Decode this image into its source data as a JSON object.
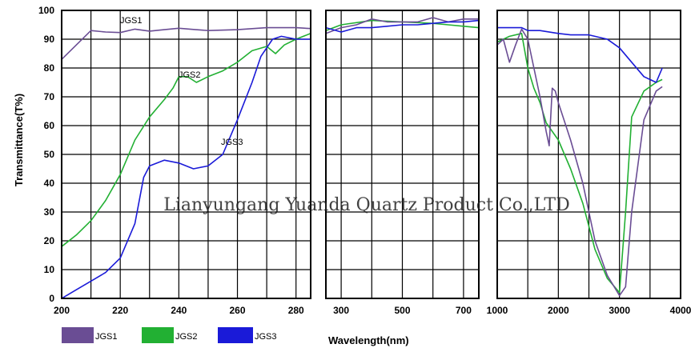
{
  "chart_data": {
    "type": "line",
    "ylabel": "Transmittance(T%)",
    "xlabel": "Wavelength(nm)",
    "ylim": [
      0,
      100
    ],
    "yticks": [
      "0",
      "10",
      "20",
      "30",
      "40",
      "50",
      "60",
      "70",
      "80",
      "90",
      "100"
    ],
    "grid": true,
    "panels": [
      {
        "xlim": [
          200,
          285
        ],
        "xticks": [
          {
            "v": 200,
            "label": "200"
          },
          {
            "v": 220,
            "label": "220"
          },
          {
            "v": 240,
            "label": "240"
          },
          {
            "v": 260,
            "label": "260"
          },
          {
            "v": 280,
            "label": "280"
          }
        ],
        "gridx": [
          200,
          210,
          220,
          230,
          240,
          250,
          260,
          270,
          280
        ],
        "series": {
          "JGS1": [
            [
              200,
              83
            ],
            [
              205,
              88
            ],
            [
              210,
              93
            ],
            [
              215,
              92.5
            ],
            [
              220,
              92.3
            ],
            [
              225,
              93.5
            ],
            [
              230,
              92.8
            ],
            [
              235,
              93.3
            ],
            [
              240,
              93.8
            ],
            [
              245,
              93.4
            ],
            [
              250,
              93
            ],
            [
              260,
              93.3
            ],
            [
              270,
              94
            ],
            [
              280,
              94
            ],
            [
              285,
              93.7
            ]
          ],
          "JGS2": [
            [
              200,
              18
            ],
            [
              205,
              22
            ],
            [
              210,
              27
            ],
            [
              215,
              34
            ],
            [
              220,
              43
            ],
            [
              225,
              55
            ],
            [
              230,
              63
            ],
            [
              235,
              69
            ],
            [
              238,
              73
            ],
            [
              240,
              77
            ],
            [
              243,
              77
            ],
            [
              246,
              75
            ],
            [
              250,
              77
            ],
            [
              255,
              79
            ],
            [
              260,
              82
            ],
            [
              265,
              86
            ],
            [
              270,
              87.5
            ],
            [
              273,
              85
            ],
            [
              276,
              88
            ],
            [
              280,
              90
            ],
            [
              285,
              92
            ]
          ],
          "JGS3": [
            [
              200,
              0
            ],
            [
              205,
              3
            ],
            [
              210,
              6
            ],
            [
              215,
              9
            ],
            [
              220,
              14
            ],
            [
              225,
              26
            ],
            [
              228,
              42
            ],
            [
              230,
              46
            ],
            [
              235,
              48
            ],
            [
              240,
              47
            ],
            [
              245,
              45
            ],
            [
              250,
              46
            ],
            [
              255,
              50
            ],
            [
              260,
              62
            ],
            [
              265,
              75
            ],
            [
              268,
              84
            ],
            [
              272,
              90
            ],
            [
              275,
              91
            ],
            [
              280,
              90
            ],
            [
              285,
              90
            ]
          ]
        }
      },
      {
        "xlim": [
          250,
          750
        ],
        "xticks": [
          {
            "v": 300,
            "label": "300"
          },
          {
            "v": 500,
            "label": "500"
          },
          {
            "v": 700,
            "label": "700"
          }
        ],
        "gridx": [
          300,
          400,
          500,
          600,
          700
        ],
        "series": {
          "JGS1": [
            [
              250,
              92
            ],
            [
              300,
              94
            ],
            [
              350,
              95
            ],
            [
              400,
              97
            ],
            [
              450,
              96
            ],
            [
              500,
              96
            ],
            [
              550,
              96
            ],
            [
              600,
              97.5
            ],
            [
              650,
              96
            ],
            [
              700,
              97
            ],
            [
              750,
              97
            ]
          ],
          "JGS2": [
            [
              250,
              93
            ],
            [
              300,
              95
            ],
            [
              400,
              96.5
            ],
            [
              500,
              96
            ],
            [
              600,
              95.5
            ],
            [
              650,
              95
            ],
            [
              700,
              94.5
            ],
            [
              750,
              94
            ]
          ],
          "JGS3": [
            [
              250,
              94
            ],
            [
              300,
              92.5
            ],
            [
              350,
              94
            ],
            [
              400,
              94
            ],
            [
              450,
              94.5
            ],
            [
              500,
              95
            ],
            [
              550,
              95
            ],
            [
              600,
              95.5
            ],
            [
              650,
              96
            ],
            [
              700,
              96
            ],
            [
              750,
              96.5
            ]
          ]
        }
      },
      {
        "xlim": [
          1000,
          4000
        ],
        "xticks": [
          {
            "v": 1000,
            "label": "1000"
          },
          {
            "v": 2000,
            "label": "2000"
          },
          {
            "v": 3000,
            "label": "3000"
          },
          {
            "v": 4000,
            "label": "4000"
          }
        ],
        "gridx": [
          1000,
          1500,
          2000,
          2500,
          3000,
          3500,
          4000
        ],
        "series": {
          "JGS1": [
            [
              1000,
              88
            ],
            [
              1100,
              90
            ],
            [
              1200,
              82
            ],
            [
              1300,
              88
            ],
            [
              1400,
              93.5
            ],
            [
              1500,
              90
            ],
            [
              1600,
              80
            ],
            [
              1700,
              70
            ],
            [
              1800,
              58
            ],
            [
              1850,
              53
            ],
            [
              1900,
              73
            ],
            [
              1950,
              72
            ],
            [
              2000,
              68
            ],
            [
              2200,
              55
            ],
            [
              2400,
              40
            ],
            [
              2600,
              20
            ],
            [
              2800,
              8
            ],
            [
              3000,
              1
            ],
            [
              3100,
              4
            ],
            [
              3200,
              30
            ],
            [
              3400,
              62
            ],
            [
              3600,
              72
            ],
            [
              3700,
              73.5
            ]
          ],
          "JGS2": [
            [
              1000,
              89
            ],
            [
              1200,
              91
            ],
            [
              1400,
              92
            ],
            [
              1500,
              80
            ],
            [
              1600,
              73
            ],
            [
              1700,
              68
            ],
            [
              1800,
              61
            ],
            [
              2000,
              55
            ],
            [
              2200,
              45
            ],
            [
              2400,
              33
            ],
            [
              2600,
              17
            ],
            [
              2800,
              7
            ],
            [
              3000,
              2
            ],
            [
              3100,
              30
            ],
            [
              3200,
              63
            ],
            [
              3400,
              72
            ],
            [
              3600,
              75
            ],
            [
              3700,
              76
            ]
          ],
          "JGS3": [
            [
              1000,
              94
            ],
            [
              1200,
              94
            ],
            [
              1400,
              94
            ],
            [
              1500,
              93
            ],
            [
              1700,
              93
            ],
            [
              2000,
              92
            ],
            [
              2200,
              91.5
            ],
            [
              2500,
              91.5
            ],
            [
              2800,
              90
            ],
            [
              3000,
              87
            ],
            [
              3200,
              82
            ],
            [
              3400,
              77
            ],
            [
              3500,
              76
            ],
            [
              3600,
              75
            ],
            [
              3700,
              80
            ]
          ]
        }
      }
    ],
    "legend": [
      {
        "name": "JGS1",
        "color": "#6a4d94"
      },
      {
        "name": "JGS2",
        "color": "#22b033"
      },
      {
        "name": "JGS3",
        "color": "#1a1ad8"
      }
    ],
    "annotations": [
      "JGS1",
      "JGS2",
      "JGS3"
    ]
  },
  "watermark": "Lianyungang Yuanda Quartz Product Co.,LTD"
}
